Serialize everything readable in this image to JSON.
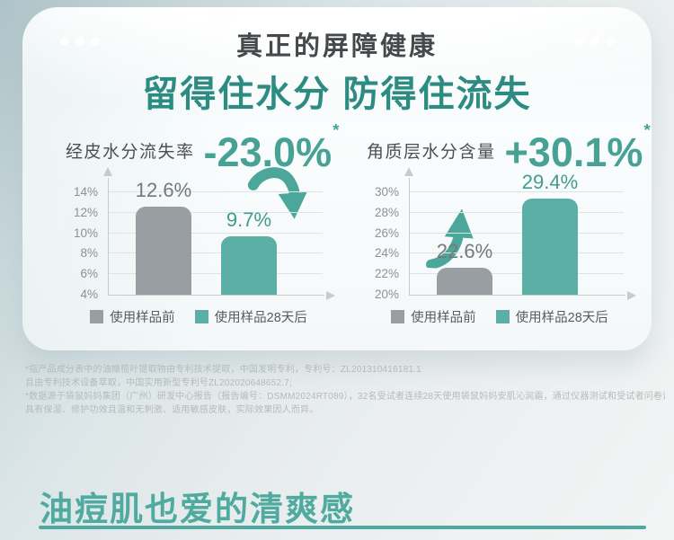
{
  "page": {
    "header": {
      "title": "真正的屏障健康",
      "subtitle": "留得住水分 防得住流失"
    },
    "footnotes": [
      "*指产品成分表中的油橄榄叶提取物由专利技术提取，中国发明专利，专利号：ZL201310416181.1",
      "且由专利技术设备萃取，中国实用新型专利号ZL202020648652.7;",
      "*数据源于袋鼠妈妈集团（广州）研发中心报告（报告编号：DSMM2024RT089），32名受试者连续28天使用袋鼠妈妈安肌沁润霜，通过仪器测试和受试者问卷评价，产品",
      "具有保湿、修护功效且温和无刺激、适用敏感皮肤，实际效果因人而异。"
    ],
    "section": {
      "heading": "油痘肌也爱的清爽感"
    }
  },
  "colors": {
    "accent_teal": "#4aa79a",
    "heading_teal": "#2d8c82",
    "bar_gray": "#989ea1",
    "bar_teal": "#5bafa5"
  },
  "chart_data": [
    {
      "type": "bar",
      "title": "经皮水分流失率",
      "delta_label": "-23.0%",
      "delta_asterisk": "*",
      "trend": "down",
      "categories": [
        "使用样品前",
        "使用样品28天后"
      ],
      "values": [
        12.6,
        9.7
      ],
      "value_labels": [
        "12.6%",
        "9.7%"
      ],
      "series_colors": [
        "#989ea1",
        "#5bafa5"
      ],
      "value_label_colors": [
        "#75797c",
        "#3f9c8f"
      ],
      "yticks": [
        4,
        6,
        8,
        10,
        12,
        14
      ],
      "ytick_labels": [
        "4%",
        "6%",
        "8%",
        "10%",
        "12%",
        "14%"
      ],
      "ylim": [
        4,
        15.4
      ],
      "baseline": 4,
      "grid": true,
      "legend": [
        "使用样品前",
        "使用样品28天后"
      ],
      "legend_position": "bottom"
    },
    {
      "type": "bar",
      "title": "角质层水分含量",
      "delta_label": "+30.1%",
      "delta_asterisk": "*",
      "trend": "up",
      "categories": [
        "使用样品前",
        "使用样品28天后"
      ],
      "values": [
        22.6,
        29.4
      ],
      "value_labels": [
        "22.6%",
        "29.4%"
      ],
      "series_colors": [
        "#989ea1",
        "#5bafa5"
      ],
      "value_label_colors": [
        "#75797c",
        "#3f9c8f"
      ],
      "yticks": [
        20,
        22,
        24,
        26,
        28,
        30
      ],
      "ytick_labels": [
        "20%",
        "22%",
        "24%",
        "26%",
        "28%",
        "30%"
      ],
      "ylim": [
        20,
        31.4
      ],
      "baseline": 20,
      "grid": true,
      "legend": [
        "使用样品前",
        "使用样品28天后"
      ],
      "legend_position": "bottom"
    }
  ]
}
